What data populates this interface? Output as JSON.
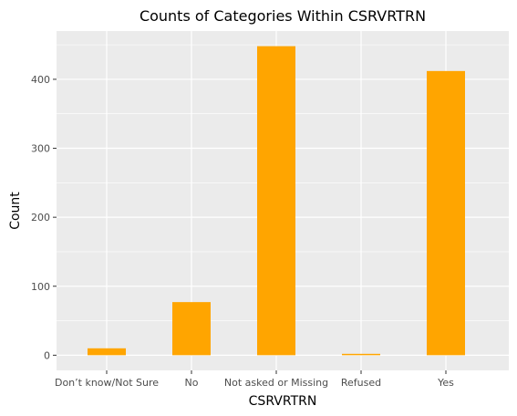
{
  "chart_data": {
    "type": "bar",
    "title": "Counts of Categories Within CSRVRTRN",
    "xlabel": "CSRVRTRN",
    "ylabel": "Count",
    "categories": [
      "Don’t know/Not Sure",
      "No",
      "Not asked or Missing",
      "Refused",
      "Yes"
    ],
    "values": [
      10,
      77,
      448,
      2,
      412
    ],
    "ylim": [
      -22,
      470
    ],
    "yticks": [
      0,
      100,
      200,
      300,
      400
    ],
    "grid": true,
    "bar_color": "#FFA500",
    "panel_background": "#EBEBEB",
    "grid_color": "#FFFFFF"
  }
}
